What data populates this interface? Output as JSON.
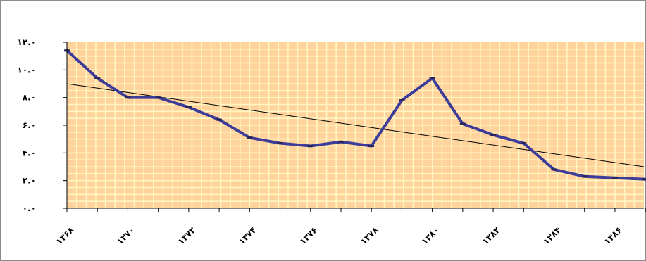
{
  "chart_data": {
    "type": "line",
    "title": "",
    "xlabel": "",
    "ylabel": "",
    "x": [
      1368,
      1369,
      1370,
      1371,
      1372,
      1373,
      1374,
      1375,
      1376,
      1377,
      1378,
      1379,
      1380,
      1381,
      1382,
      1383,
      1384,
      1385,
      1386,
      1387
    ],
    "x_tick_values": [
      1368,
      1370,
      1372,
      1374,
      1376,
      1378,
      1380,
      1382,
      1384,
      1386
    ],
    "x_tick_labels": [
      "۱۳۶۸",
      "۱۳۷۰",
      "۱۳۷۲",
      "۱۳۷۴",
      "۱۳۷۶",
      "۱۳۷۸",
      "۱۳۸۰",
      "۱۳۸۲",
      "۱۳۸۴",
      "۱۳۸۶"
    ],
    "y_ticks": [
      0,
      2,
      4,
      6,
      8,
      10,
      12
    ],
    "y_tick_labels": [
      "۰.۰",
      "۲.۰",
      "۴.۰",
      "۶.۰",
      "۸.۰",
      "۱۰.۰",
      "۱۲.۰"
    ],
    "ylim": [
      0,
      12
    ],
    "xlim": [
      1368,
      1386.95
    ],
    "grid": true,
    "series": [
      {
        "values": [
          11.4,
          9.4,
          8.0,
          8.0,
          7.3,
          6.4,
          5.1,
          4.7,
          4.5,
          4.8,
          4.5,
          7.8,
          9.4,
          6.1,
          5.3,
          4.7,
          2.8,
          2.3,
          2.2,
          2.1
        ],
        "color": "#3d3d99",
        "marker_color": "#26265c"
      }
    ],
    "trendline": {
      "start": [
        1368,
        9.0
      ],
      "end": [
        1386.95,
        3.0
      ],
      "color": "#000000"
    },
    "plot_colors": {
      "background": "#ffd39b",
      "grid": "#fff6c2"
    }
  }
}
